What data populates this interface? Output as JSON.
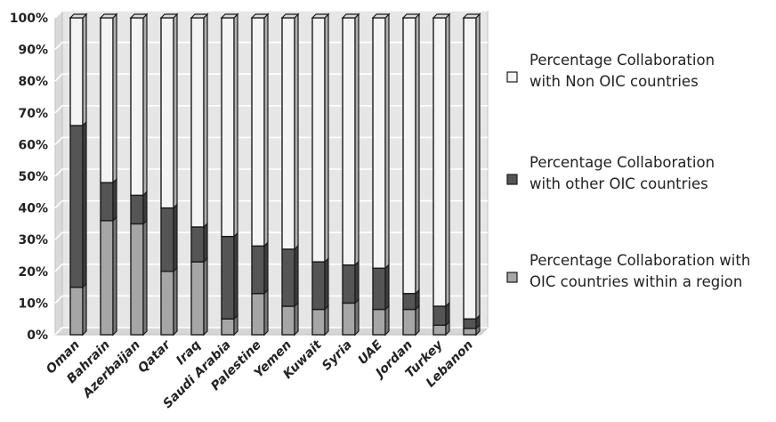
{
  "chart_data": {
    "type": "bar",
    "stacked": true,
    "percent_stacked": true,
    "style": "3d",
    "categories": [
      "Oman",
      "Bahrain",
      "Azerbaijan",
      "Qatar",
      "Iraq",
      "Saudi Arabia",
      "Palestine",
      "Yemen",
      "Kuwait",
      "Syria",
      "UAE",
      "Jordan",
      "Turkey",
      "Lebanon"
    ],
    "series": [
      {
        "name": "Percentage Collaboration with OIC countries within a region",
        "color": "#a6a6a6",
        "values": [
          15,
          36,
          35,
          20,
          23,
          5,
          13,
          9,
          8,
          10,
          8,
          8,
          3,
          2
        ]
      },
      {
        "name": "Percentage Collaboration with other OIC countries",
        "color": "#555555",
        "values": [
          51,
          12,
          9,
          20,
          11,
          26,
          15,
          18,
          15,
          12,
          13,
          5,
          6,
          3
        ]
      },
      {
        "name": "Percentage Collaboration with Non OIC countries",
        "color": "#f4f4f4",
        "values": [
          34,
          52,
          56,
          60,
          66,
          69,
          72,
          73,
          77,
          78,
          79,
          87,
          91,
          95
        ]
      }
    ],
    "ylim": [
      0,
      100
    ],
    "yticks": [
      "0%",
      "10%",
      "20%",
      "30%",
      "40%",
      "50%",
      "60%",
      "70%",
      "80%",
      "90%",
      "100%"
    ],
    "grid": true,
    "legend": {
      "placement": "right",
      "entries": [
        {
          "lines": [
            "Percentage Collaboration",
            "with Non OIC countries"
          ],
          "color": "#f4f4f4"
        },
        {
          "lines": [
            "Percentage Collaboration",
            "with other OIC countries"
          ],
          "color": "#555555"
        },
        {
          "lines": [
            "Percentage Collaboration with",
            "OIC countries within a region"
          ],
          "color": "#a6a6a6"
        }
      ]
    },
    "title": "",
    "xlabel": "",
    "ylabel": ""
  }
}
